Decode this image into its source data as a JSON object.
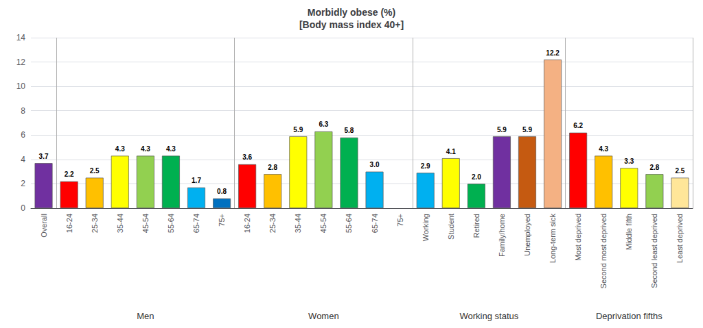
{
  "chart_data": {
    "type": "bar",
    "title": "Morbidly obese (%)\n[Body mass index 40+]",
    "categories": [
      "Overall",
      "16-24",
      "25-34",
      "35-44",
      "45-54",
      "55-64",
      "65-74",
      "75+",
      "16-24",
      "25-34",
      "35-44",
      "45-54",
      "55-64",
      "65-74",
      "75+",
      "Working",
      "Student",
      "Retired",
      "Family/home",
      "Unemployed",
      "Long-term sick",
      "Most deprived",
      "Second most deprived",
      "Middle fifth",
      "Second least deprived",
      "Least deprived"
    ],
    "values": [
      3.7,
      2.2,
      2.5,
      4.3,
      4.3,
      4.3,
      1.7,
      0.8,
      3.6,
      2.8,
      5.9,
      6.3,
      5.8,
      3.0,
      null,
      2.9,
      4.1,
      2.0,
      5.9,
      5.9,
      12.2,
      6.2,
      4.3,
      3.3,
      2.8,
      2.5
    ],
    "value_labels": [
      "3.7",
      "2.2",
      "2.5",
      "4.3",
      "4.3",
      "4.3",
      "1.7",
      "0.8",
      "3.6",
      "2.8",
      "5.9",
      "6.3",
      "5.8",
      "3.0",
      null,
      "2.9",
      "4.1",
      "2.0",
      "5.9",
      "5.9",
      "12.2",
      "6.2",
      "4.3",
      "3.3",
      "2.8",
      "2.5"
    ],
    "colors": [
      "#7030a0",
      "#ff0000",
      "#ffc000",
      "#ffff00",
      "#92d050",
      "#00b050",
      "#00b0f0",
      "#0070c0",
      "#ff0000",
      "#ffc000",
      "#ffff00",
      "#92d050",
      "#00b050",
      "#00b0f0",
      "#0070c0",
      "#00b0f0",
      "#ffff00",
      "#00b050",
      "#7030a0",
      "#c55a11",
      "#f4b183",
      "#ff0000",
      "#ffc000",
      "#ffff00",
      "#92d050",
      "#ffe699"
    ],
    "annotations": [
      {
        "text": "Men",
        "from": 1,
        "to": 7
      },
      {
        "text": "Women",
        "from": 8,
        "to": 14
      },
      {
        "text": "Working status",
        "from": 15,
        "to": 20
      },
      {
        "text": "Deprivation fifths",
        "from": 21,
        "to": 25
      }
    ],
    "ylim": [
      0,
      14
    ],
    "yticks": [
      0,
      2,
      4,
      6,
      8,
      10,
      12,
      14
    ],
    "grid": true,
    "data_labels": true
  }
}
